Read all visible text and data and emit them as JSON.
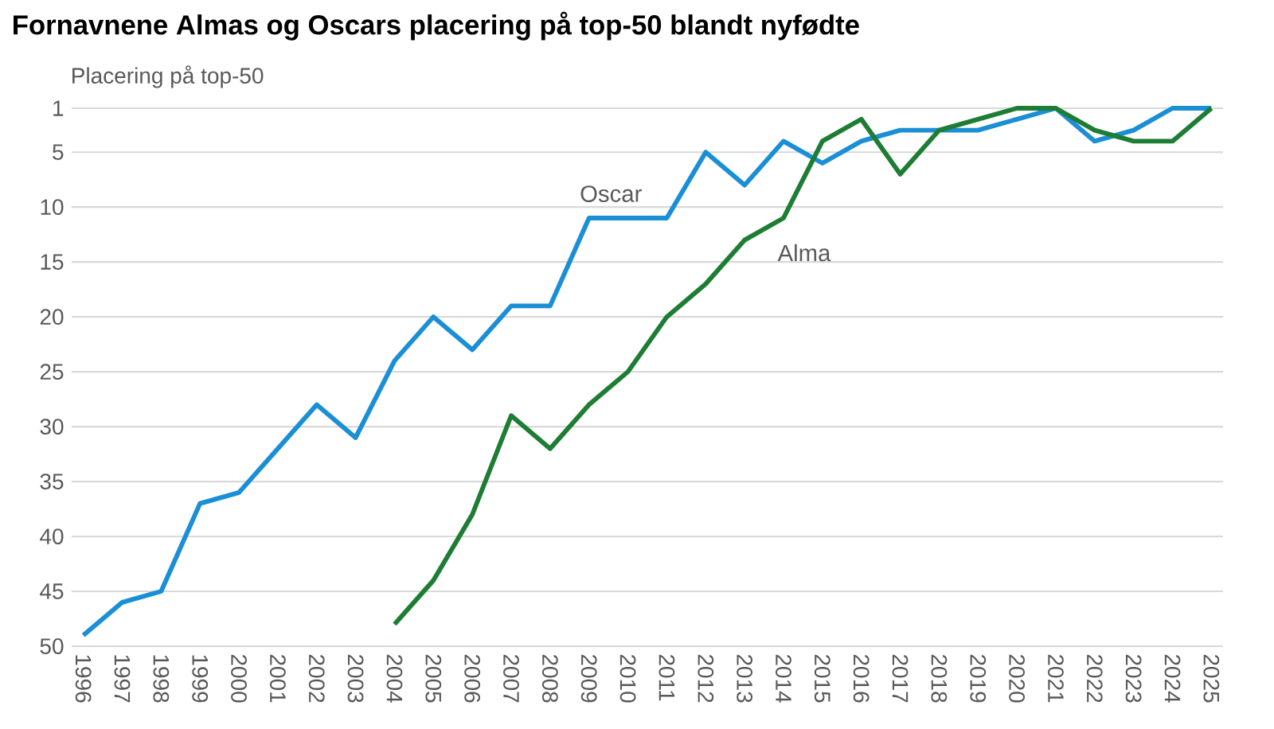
{
  "chart_data": {
    "type": "line",
    "title": "Fornavnene Almas og Oscars placering på top-50 blandt nyfødte",
    "ylabel": "Placering på top-50",
    "categories": [
      "1996",
      "1997",
      "1998",
      "1999",
      "2000",
      "2001",
      "2002",
      "2003",
      "2004",
      "2005",
      "2006",
      "2007",
      "2008",
      "2009",
      "2010",
      "2011",
      "2012",
      "2013",
      "2014",
      "2015",
      "2016",
      "2017",
      "2018",
      "2019",
      "2020",
      "2021",
      "2022",
      "2023",
      "2024",
      "2025"
    ],
    "series": [
      {
        "name": "Oscar",
        "color": "#1a8fd6",
        "values": [
          49,
          46,
          45,
          37,
          36,
          32,
          28,
          31,
          24,
          20,
          23,
          19,
          19,
          11,
          11,
          11,
          5,
          8,
          4,
          6,
          4,
          3,
          3,
          3,
          2,
          1,
          4,
          3,
          1,
          1
        ]
      },
      {
        "name": "Alma",
        "color": "#1e7d34",
        "values": [
          null,
          null,
          null,
          null,
          null,
          null,
          null,
          null,
          48,
          44,
          38,
          29,
          32,
          28,
          25,
          20,
          17,
          13,
          11,
          4,
          2,
          7,
          3,
          2,
          1,
          1,
          3,
          4,
          4,
          1
        ]
      }
    ],
    "ylim": [
      50,
      1
    ],
    "yticks": [
      1,
      5,
      10,
      15,
      20,
      25,
      30,
      35,
      40,
      45,
      50
    ],
    "grid": "y",
    "legend": false,
    "marker": "none",
    "line_style": "solid"
  }
}
